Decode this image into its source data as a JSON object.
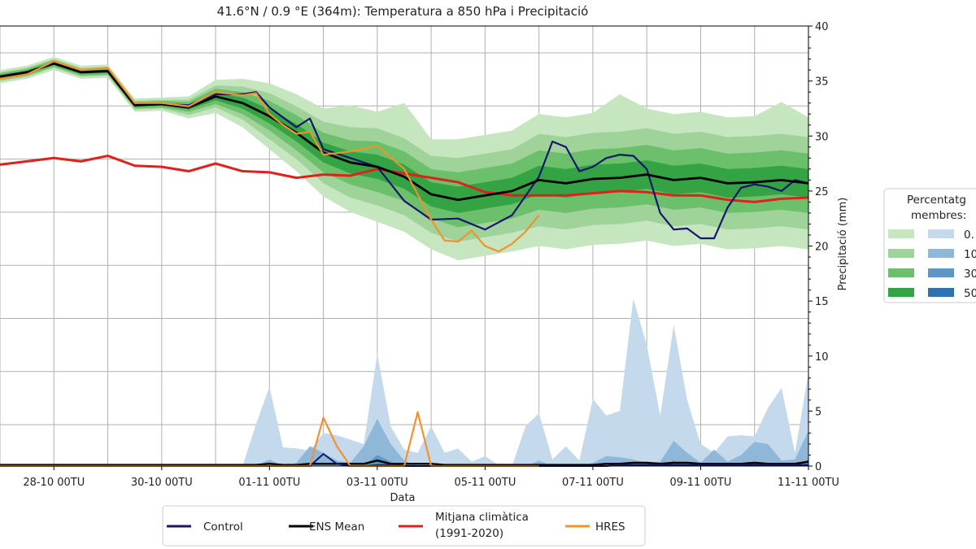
{
  "chart_data": {
    "type": "line",
    "title": "41.6°N / 0.9 °E (364m): Temperatura a 850 hPa i Precipitació",
    "xlabel": "Data",
    "ylabel_right": "Precipitació (mm)",
    "ylim_right": [
      0,
      40
    ],
    "yticks_right": [
      "0",
      "5",
      "10",
      "15",
      "20",
      "25",
      "30",
      "35",
      "40"
    ],
    "xlim": [
      "27-10 00TU",
      "11-11 00TU"
    ],
    "xticks": [
      "28-10 00TU",
      "30-10 00TU",
      "01-11 00TU",
      "03-11 00TU",
      "05-11 00TU",
      "07-11 00TU",
      "09-11 00TU",
      "11-11 00TU"
    ],
    "grid": true,
    "temperature_note_units": "values read on the right-axis scale (left axis not visible)",
    "times_12h": [
      "27-10 00TU",
      "27-10 12TU",
      "28-10 00TU",
      "28-10 12TU",
      "29-10 00TU",
      "29-10 12TU",
      "30-10 00TU",
      "30-10 12TU",
      "31-10 00TU",
      "31-10 12TU",
      "01-11 00TU",
      "01-11 12TU",
      "02-11 00TU",
      "02-11 12TU",
      "03-11 00TU",
      "03-11 12TU",
      "04-11 00TU",
      "04-11 12TU",
      "05-11 00TU",
      "05-11 12TU",
      "06-11 00TU",
      "06-11 12TU",
      "07-11 00TU",
      "07-11 12TU",
      "08-11 00TU",
      "08-11 12TU",
      "09-11 00TU",
      "09-11 12TU",
      "10-11 00TU",
      "10-11 12TU",
      "11-11 00TU"
    ],
    "ens_mean": [
      35.4,
      35.8,
      36.6,
      35.8,
      35.9,
      32.8,
      32.9,
      32.6,
      33.6,
      33.0,
      31.8,
      30.3,
      28.5,
      27.6,
      27.2,
      26.3,
      24.7,
      24.2,
      24.6,
      25.0,
      26.0,
      25.7,
      26.1,
      26.2,
      26.5,
      26.0,
      26.2,
      25.7,
      25.8,
      26.0,
      25.7
    ],
    "climate_mean": [
      27.4,
      27.7,
      28.0,
      27.7,
      28.2,
      27.3,
      27.2,
      26.8,
      27.5,
      26.8,
      26.7,
      26.2,
      26.5,
      26.4,
      27.0,
      26.6,
      26.2,
      25.8,
      24.9,
      24.6,
      24.6,
      24.6,
      24.8,
      25.0,
      24.9,
      24.6,
      24.6,
      24.2,
      24.0,
      24.3,
      24.4
    ],
    "temperature_bands": [
      {
        "level": "0",
        "color": "#c6e6c0",
        "upper": [
          36.0,
          36.4,
          37.2,
          36.4,
          36.5,
          33.4,
          33.5,
          33.6,
          35.1,
          35.2,
          34.8,
          33.8,
          32.5,
          32.8,
          32.2,
          33.0,
          29.7,
          29.7,
          30.1,
          30.5,
          32.0,
          31.7,
          32.1,
          33.8,
          32.5,
          32.0,
          32.2,
          31.7,
          31.8,
          33.1,
          31.7
        ],
        "lower": [
          34.8,
          35.2,
          36.0,
          35.2,
          35.3,
          32.2,
          32.3,
          31.6,
          32.1,
          30.8,
          28.8,
          26.8,
          24.5,
          23.1,
          22.2,
          21.3,
          19.7,
          18.7,
          19.1,
          19.5,
          20.0,
          19.7,
          20.1,
          20.2,
          20.5,
          20.0,
          20.2,
          19.7,
          19.8,
          20.0,
          19.7
        ]
      },
      {
        "level": "10",
        "color": "#9fd39a",
        "upper": [
          35.8,
          36.2,
          37.0,
          36.2,
          36.3,
          33.2,
          33.3,
          33.3,
          34.6,
          34.5,
          33.9,
          32.7,
          31.3,
          30.8,
          30.7,
          29.8,
          28.2,
          28.0,
          28.4,
          28.8,
          30.2,
          29.9,
          30.3,
          30.4,
          30.7,
          30.2,
          30.4,
          29.9,
          30.0,
          30.2,
          29.9
        ],
        "lower": [
          35.0,
          35.4,
          36.2,
          35.4,
          35.5,
          32.4,
          32.5,
          31.9,
          32.6,
          31.5,
          29.7,
          27.9,
          25.7,
          24.4,
          23.7,
          22.8,
          21.2,
          20.4,
          20.8,
          21.2,
          21.8,
          21.5,
          21.9,
          22.0,
          22.3,
          21.8,
          22.0,
          21.5,
          21.6,
          21.8,
          21.5
        ]
      },
      {
        "level": "30",
        "color": "#6cc06b",
        "upper": [
          35.7,
          36.1,
          36.9,
          36.1,
          36.2,
          33.1,
          33.2,
          33.1,
          34.3,
          34.0,
          33.2,
          31.9,
          30.3,
          29.6,
          29.5,
          28.6,
          27.0,
          26.7,
          27.1,
          27.5,
          28.7,
          28.4,
          28.8,
          28.9,
          29.2,
          28.7,
          28.9,
          28.4,
          28.5,
          28.7,
          28.4
        ],
        "lower": [
          35.1,
          35.5,
          36.3,
          35.5,
          35.6,
          32.5,
          32.6,
          32.2,
          32.9,
          32.0,
          30.5,
          28.7,
          26.7,
          25.6,
          24.9,
          24.1,
          22.5,
          21.7,
          22.1,
          22.5,
          23.3,
          23.0,
          23.4,
          23.5,
          23.8,
          23.3,
          23.5,
          23.0,
          23.1,
          23.3,
          23.0
        ]
      },
      {
        "level": "50",
        "color": "#34a343",
        "upper": [
          35.55,
          35.95,
          36.75,
          35.95,
          36.05,
          32.95,
          33.05,
          32.8,
          33.95,
          33.5,
          32.45,
          31.1,
          29.4,
          28.6,
          28.3,
          27.4,
          25.8,
          25.4,
          25.8,
          26.2,
          27.3,
          27.0,
          27.4,
          27.5,
          27.8,
          27.3,
          27.5,
          27.0,
          27.1,
          27.3,
          27.0
        ],
        "lower": [
          35.25,
          35.65,
          36.45,
          35.65,
          35.75,
          32.65,
          32.75,
          32.4,
          33.25,
          32.5,
          31.15,
          29.5,
          27.6,
          26.6,
          26.1,
          25.2,
          23.6,
          23.0,
          23.4,
          23.8,
          24.7,
          24.4,
          24.8,
          24.9,
          25.2,
          24.7,
          24.9,
          24.4,
          24.5,
          24.7,
          24.4
        ]
      }
    ],
    "control": [
      [
        "27-10 00TU",
        35.4
      ],
      [
        "27-10 12TU",
        35.8
      ],
      [
        "28-10 00TU",
        36.6
      ],
      [
        "28-10 12TU",
        35.8
      ],
      [
        "29-10 00TU",
        35.9
      ],
      [
        "29-10 12TU",
        32.8
      ],
      [
        "30-10 00TU",
        32.9
      ],
      [
        "30-10 12TU",
        32.8
      ],
      [
        "31-10 00TU",
        33.8
      ],
      [
        "31-10 12TU",
        33.8
      ],
      [
        "31-10 18TU",
        34.0
      ],
      [
        "01-11 00TU",
        32.6
      ],
      [
        "01-11 12TU",
        30.8
      ],
      [
        "01-11 18TU",
        31.6
      ],
      [
        "02-11 00TU",
        28.8
      ],
      [
        "02-11 12TU",
        28.0
      ],
      [
        "03-11 00TU",
        27.2
      ],
      [
        "03-11 12TU",
        24.1
      ],
      [
        "04-11 00TU",
        22.4
      ],
      [
        "04-11 12TU",
        22.5
      ],
      [
        "05-11 00TU",
        21.5
      ],
      [
        "05-11 12TU",
        22.8
      ],
      [
        "06-11 00TU",
        26.3
      ],
      [
        "06-11 06TU",
        29.5
      ],
      [
        "06-11 12TU",
        29.0
      ],
      [
        "06-11 18TU",
        26.8
      ],
      [
        "07-11 00TU",
        27.2
      ],
      [
        "07-11 06TU",
        28.0
      ],
      [
        "07-11 12TU",
        28.3
      ],
      [
        "07-11 18TU",
        28.2
      ],
      [
        "08-11 00TU",
        27.0
      ],
      [
        "08-11 06TU",
        23.0
      ],
      [
        "08-11 12TU",
        21.5
      ],
      [
        "08-11 18TU",
        21.6
      ],
      [
        "09-11 00TU",
        20.7
      ],
      [
        "09-11 06TU",
        20.7
      ],
      [
        "09-11 12TU",
        23.5
      ],
      [
        "09-11 18TU",
        25.3
      ],
      [
        "10-11 00TU",
        25.6
      ],
      [
        "10-11 06TU",
        25.4
      ],
      [
        "10-11 12TU",
        25.0
      ],
      [
        "10-11 18TU",
        26.0
      ],
      [
        "11-11 00TU",
        25.7
      ]
    ],
    "hres": [
      [
        "27-10 00TU",
        35.2
      ],
      [
        "27-10 12TU",
        35.6
      ],
      [
        "28-10 00TU",
        36.8
      ],
      [
        "28-10 12TU",
        36.0
      ],
      [
        "29-10 00TU",
        36.2
      ],
      [
        "29-10 12TU",
        33.0
      ],
      [
        "30-10 00TU",
        33.0
      ],
      [
        "30-10 12TU",
        32.7
      ],
      [
        "31-10 00TU",
        34.0
      ],
      [
        "31-10 12TU",
        33.7
      ],
      [
        "31-10 18TU",
        33.9
      ],
      [
        "01-11 00TU",
        32.0
      ],
      [
        "01-11 06TU",
        31.0
      ],
      [
        "01-11 12TU",
        30.2
      ],
      [
        "01-11 18TU",
        30.4
      ],
      [
        "02-11 00TU",
        28.3
      ],
      [
        "02-11 12TU",
        28.6
      ],
      [
        "03-11 00TU",
        29.1
      ],
      [
        "03-11 12TU",
        27.0
      ],
      [
        "04-11 00TU",
        22.4
      ],
      [
        "04-11 06TU",
        20.5
      ],
      [
        "04-11 12TU",
        20.4
      ],
      [
        "04-11 18TU",
        21.4
      ],
      [
        "05-11 00TU",
        20.0
      ],
      [
        "05-11 06TU",
        19.5
      ],
      [
        "05-11 12TU",
        20.2
      ],
      [
        "05-11 18TU",
        21.3
      ],
      [
        "06-11 00TU",
        22.8
      ]
    ],
    "times_6h": [
      "27-10 00TU",
      "27-10 06TU",
      "27-10 12TU",
      "27-10 18TU",
      "28-10 00TU",
      "28-10 06TU",
      "28-10 12TU",
      "28-10 18TU",
      "29-10 00TU",
      "29-10 06TU",
      "29-10 12TU",
      "29-10 18TU",
      "30-10 00TU",
      "30-10 06TU",
      "30-10 12TU",
      "30-10 18TU",
      "31-10 00TU",
      "31-10 06TU",
      "31-10 12TU",
      "31-10 18TU",
      "01-11 00TU",
      "01-11 06TU",
      "01-11 12TU",
      "01-11 18TU",
      "02-11 00TU",
      "02-11 06TU",
      "02-11 12TU",
      "02-11 18TU",
      "03-11 00TU",
      "03-11 06TU",
      "03-11 12TU",
      "03-11 18TU",
      "04-11 00TU",
      "04-11 06TU",
      "04-11 12TU",
      "04-11 18TU",
      "05-11 00TU",
      "05-11 06TU",
      "05-11 12TU",
      "05-11 18TU",
      "06-11 00TU",
      "06-11 06TU",
      "06-11 12TU",
      "06-11 18TU",
      "07-11 00TU",
      "07-11 06TU",
      "07-11 12TU",
      "07-11 18TU",
      "08-11 00TU",
      "08-11 06TU",
      "08-11 12TU",
      "08-11 18TU",
      "09-11 00TU",
      "09-11 06TU",
      "09-11 12TU",
      "09-11 18TU",
      "10-11 00TU",
      "10-11 06TU",
      "10-11 12TU",
      "10-11 18TU",
      "11-11 00TU"
    ],
    "precip_bands": [
      {
        "level": "0",
        "color": "#c4d9ec",
        "values": [
          0,
          0,
          0,
          0,
          0,
          0,
          0,
          0,
          0,
          0,
          0,
          0,
          0,
          0,
          0,
          0,
          0,
          0,
          0,
          3.8,
          7.2,
          1.7,
          1.6,
          1.4,
          3.0,
          2.8,
          2.4,
          2.0,
          10.2,
          3.6,
          1.5,
          1.2,
          3.6,
          1.2,
          1.6,
          0.4,
          0.9,
          0.1,
          0,
          3.6,
          4.8,
          0.6,
          1.8,
          0.5,
          6.1,
          4.6,
          5.0,
          15.2,
          11.0,
          4.6,
          12.8,
          6.0,
          2.0,
          1.2,
          2.7,
          2.8,
          2.7,
          5.3,
          7.1,
          1.2,
          8.5
        ]
      },
      {
        "level": "10",
        "color": "#8fb8d8",
        "values": [
          0,
          0,
          0,
          0,
          0,
          0,
          0,
          0,
          0,
          0,
          0,
          0,
          0,
          0,
          0,
          0,
          0,
          0,
          0,
          0,
          0.6,
          0,
          0.3,
          1.8,
          1.2,
          0.5,
          0.3,
          1.8,
          4.3,
          2.0,
          0.5,
          0,
          0,
          0,
          0,
          0,
          0,
          0,
          0,
          0,
          0.5,
          0,
          0,
          0,
          0.3,
          0.9,
          0.8,
          0.6,
          0.3,
          0.4,
          2.3,
          1.2,
          0.3,
          1.5,
          0.4,
          1.0,
          2.2,
          2.0,
          0.5,
          0.6,
          3.2
        ]
      },
      {
        "level": "30",
        "color": "#5b98c8",
        "values": [
          0,
          0,
          0,
          0,
          0,
          0,
          0,
          0,
          0,
          0,
          0,
          0,
          0,
          0,
          0,
          0,
          0,
          0,
          0,
          0,
          0,
          0,
          0,
          0,
          0,
          0,
          0,
          0,
          1.0,
          0.4,
          0,
          0,
          0,
          0,
          0,
          0,
          0,
          0,
          0,
          0,
          0,
          0,
          0,
          0,
          0,
          0,
          0,
          0,
          0,
          0,
          0.5,
          0,
          0,
          0,
          0,
          0,
          0.4,
          0,
          0,
          0,
          0.6
        ]
      },
      {
        "level": "50",
        "color": "#2f72b0",
        "values": [
          0,
          0,
          0,
          0,
          0,
          0,
          0,
          0,
          0,
          0,
          0,
          0,
          0,
          0,
          0,
          0,
          0,
          0,
          0,
          0,
          0,
          0,
          0,
          0,
          0,
          0,
          0,
          0,
          0,
          0,
          0,
          0,
          0,
          0,
          0,
          0,
          0,
          0,
          0,
          0,
          0,
          0,
          0,
          0,
          0,
          0,
          0,
          0,
          0,
          0,
          0,
          0,
          0,
          0,
          0,
          0,
          0,
          0,
          0,
          0,
          0
        ]
      }
    ],
    "precip_ens_mean": [
      0.1,
      0.1,
      0.1,
      0.1,
      0.1,
      0.1,
      0.1,
      0.1,
      0.1,
      0.1,
      0.1,
      0.1,
      0.1,
      0.1,
      0.1,
      0.1,
      0.1,
      0.1,
      0.1,
      0.1,
      0.2,
      0.1,
      0.1,
      0.2,
      0.2,
      0.2,
      0.2,
      0.2,
      0.5,
      0.2,
      0.2,
      0.2,
      0.2,
      0.1,
      0.1,
      0.1,
      0.1,
      0.1,
      0.1,
      0.1,
      0.1,
      0.1,
      0.1,
      0.1,
      0.1,
      0.2,
      0.2,
      0.3,
      0.3,
      0.2,
      0.3,
      0.3,
      0.2,
      0.2,
      0.2,
      0.2,
      0.3,
      0.2,
      0.2,
      0.2,
      0.4
    ],
    "precip_control": [
      0,
      0,
      0,
      0,
      0,
      0,
      0,
      0,
      0,
      0,
      0,
      0,
      0,
      0,
      0,
      0,
      0,
      0,
      0,
      0,
      0,
      0,
      0,
      0,
      1.1,
      0.2,
      0,
      0,
      0.1,
      0.1,
      0,
      0,
      0,
      0,
      0,
      0,
      0,
      0,
      0,
      0,
      0,
      0,
      0,
      0,
      0,
      0,
      0.1,
      0.1,
      0.1,
      0.1,
      0.1,
      0.1,
      0.1,
      0.1,
      0.1,
      0.1,
      0.1,
      0.1,
      0.1,
      0.1,
      0.1
    ],
    "precip_hres": [
      0,
      0,
      0,
      0,
      0,
      0,
      0,
      0,
      0,
      0,
      0,
      0,
      0,
      0,
      0,
      0,
      0,
      0,
      0,
      0,
      0,
      0,
      0,
      0,
      4.4,
      1.8,
      0,
      0,
      0,
      0,
      0,
      4.9,
      0,
      0,
      0,
      0,
      0,
      0,
      0,
      0,
      0
    ],
    "colors": {
      "control": "#16166e",
      "ens_mean": "#000000",
      "climate_mean": "#e0201a",
      "hres": "#f0922e",
      "grid": "#b0b0b0"
    },
    "legend_bottom": {
      "placement": "bottom",
      "items": [
        {
          "key": "control",
          "label": "Control"
        },
        {
          "key": "ens_mean",
          "label": "ENS Mean"
        },
        {
          "key": "climate_mean",
          "label": "Mitjana climàtica",
          "label2": "(1991-2020)"
        },
        {
          "key": "hres",
          "label": "HRES"
        }
      ]
    },
    "legend_right": {
      "placement": "right",
      "title1": "Percentatg",
      "title2": "membres:",
      "rows": [
        {
          "label": "0.",
          "green": "#c6e6c0",
          "blue": "#c4d9ec"
        },
        {
          "label": "10",
          "green": "#9fd39a",
          "blue": "#8fb8d8"
        },
        {
          "label": "30",
          "green": "#6cc06b",
          "blue": "#5b98c8"
        },
        {
          "label": "50",
          "green": "#34a343",
          "blue": "#2f72b0"
        }
      ]
    }
  }
}
